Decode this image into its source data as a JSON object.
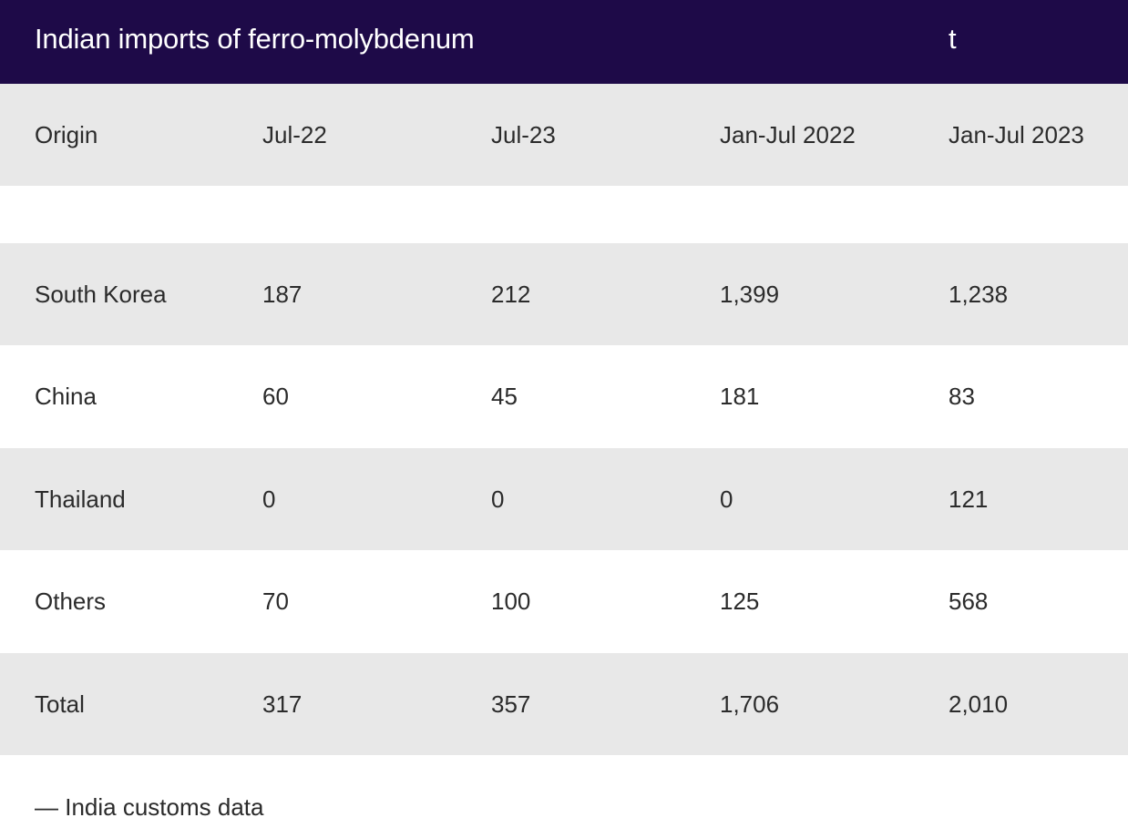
{
  "table": {
    "title": "Indian imports of ferro-molybdenum",
    "unit": "t",
    "headers": [
      "Origin",
      "Jul-22",
      "Jul-23",
      "Jan-Jul 2022",
      "Jan-Jul 2023"
    ],
    "rows": [
      [
        "South Korea",
        "187",
        "212",
        "1,399",
        "1,238"
      ],
      [
        "China",
        "60",
        "45",
        "181",
        "83"
      ],
      [
        "Thailand",
        "0",
        "0",
        "0",
        "121"
      ],
      [
        "Others",
        "70",
        "100",
        "125",
        "568"
      ],
      [
        "Total",
        "317",
        "357",
        "1,706",
        "2,010"
      ]
    ],
    "source": "— India customs data"
  },
  "colors": {
    "header_bg": "#1e0a48",
    "shaded_row": "#e8e8e8",
    "text": "#2b2b2b"
  }
}
